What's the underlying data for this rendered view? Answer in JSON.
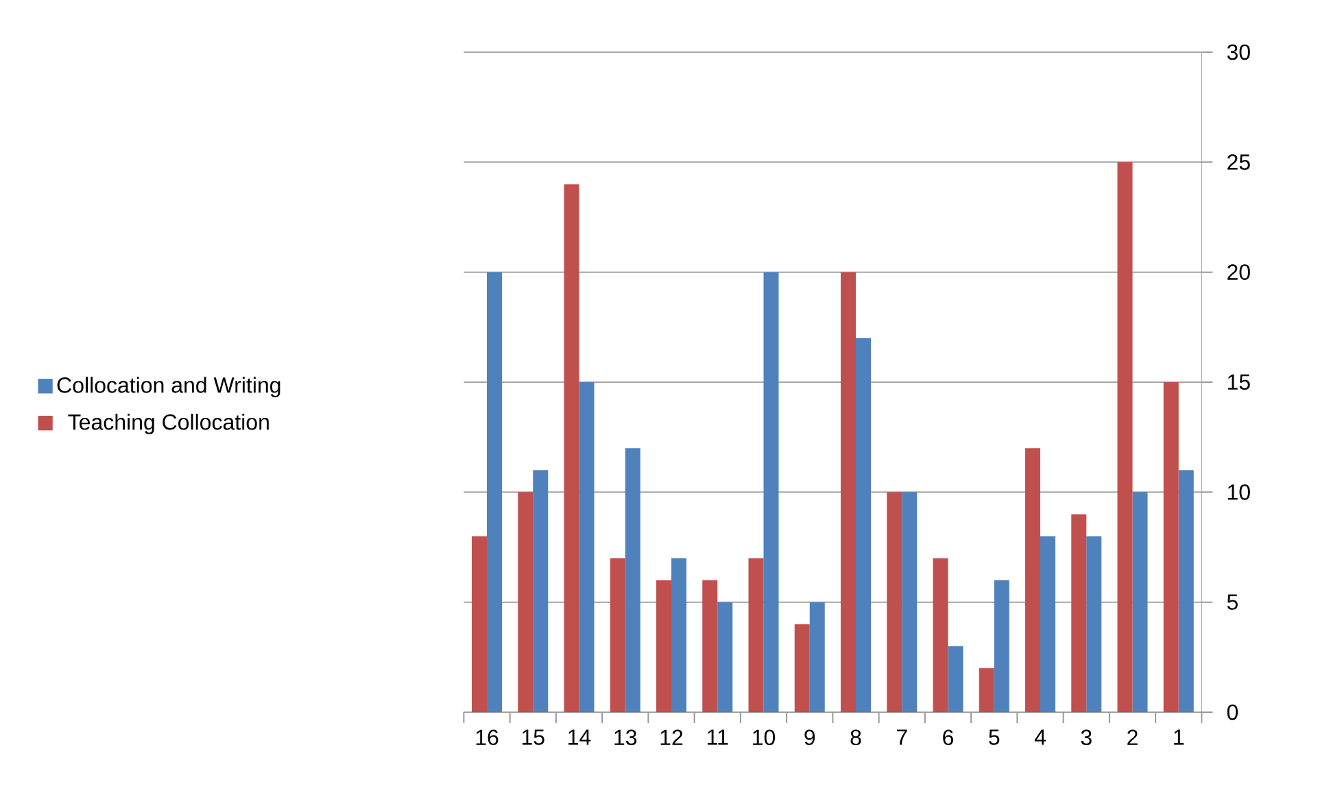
{
  "chart_data": {
    "type": "bar",
    "categories": [
      "16",
      "15",
      "14",
      "13",
      "12",
      "11",
      "10",
      "9",
      "8",
      "7",
      "6",
      "5",
      "4",
      "3",
      "2",
      "1"
    ],
    "series": [
      {
        "name": "Collocation and Writing",
        "color": "#4f81bd",
        "values": [
          20,
          11,
          15,
          12,
          7,
          5,
          20,
          5,
          17,
          10,
          3,
          6,
          8,
          8,
          10,
          11
        ]
      },
      {
        "name": "Teaching Collocation",
        "color": "#c0504d",
        "values": [
          8,
          10,
          24,
          7,
          6,
          6,
          7,
          4,
          20,
          10,
          7,
          2,
          12,
          9,
          25,
          15
        ]
      }
    ],
    "ylim": [
      0,
      30
    ],
    "yticks": [
      0,
      5,
      10,
      15,
      20,
      25,
      30
    ],
    "grid": "y",
    "legend": "left"
  }
}
